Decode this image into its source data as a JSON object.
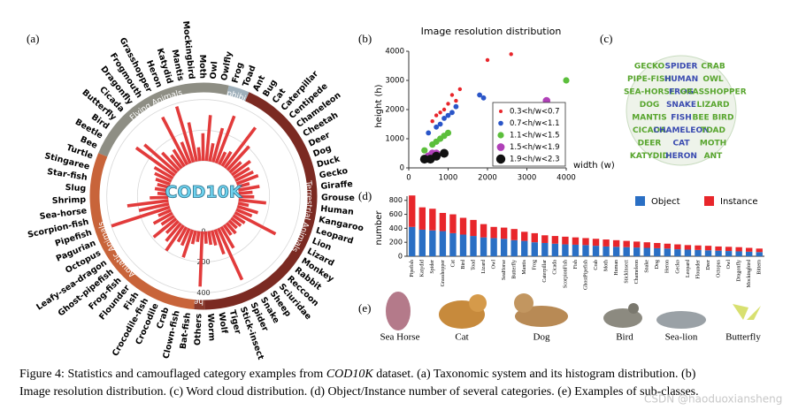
{
  "panel_labels": [
    "(a)",
    "(b)",
    "(c)",
    "(d)",
    "(e)"
  ],
  "chart_data": [
    {
      "type": "radial_bar",
      "center_label": "COD10K",
      "rlim": [
        0,
        450
      ],
      "rticks": [
        0,
        200,
        400
      ],
      "bar_color": "#e23b3b",
      "groups": [
        {
          "name": "Flying Animals",
          "color": "#8e8e84",
          "categories": [
            "Bee",
            "Beetle",
            "Bird",
            "Butterfly",
            "Cicada",
            "Dragonfly",
            "Frogmouth",
            "Grasshopper",
            "Heron",
            "Katydid",
            "Mantis",
            "Mockingbird",
            "Moth",
            "Owl",
            "Owlfly"
          ],
          "values": [
            120,
            140,
            310,
            280,
            160,
            110,
            130,
            350,
            150,
            380,
            260,
            90,
            180,
            300,
            120
          ]
        },
        {
          "name": "Amphibians",
          "color": "#9fb0bb",
          "categories": [
            "Frog",
            "Toad"
          ],
          "values": [
            230,
            330
          ]
        },
        {
          "name": "Terrestrial Animals",
          "color": "#7b2a22",
          "categories": [
            "Ant",
            "Bug",
            "Cat",
            "Caterpillar",
            "Centipede",
            "Chameleon",
            "Cheetah",
            "Deer",
            "Dog",
            "Duck",
            "Gecko",
            "Giraffe",
            "Grouse",
            "Human",
            "Kangaroo",
            "Leopard",
            "Lion",
            "Lizard",
            "Monkey",
            "Rabbit",
            "Reccoon",
            "Sciuridae",
            "Sheep",
            "Snake",
            "Spider",
            "Stick-insect",
            "Tiger",
            "Wolf",
            "Worm"
          ],
          "values": [
            90,
            110,
            330,
            210,
            100,
            150,
            120,
            130,
            150,
            80,
            140,
            90,
            100,
            180,
            70,
            140,
            110,
            300,
            90,
            80,
            70,
            90,
            80,
            160,
            370,
            170,
            100,
            90,
            80
          ]
        },
        {
          "name": "Others",
          "color": "#8a3a2c",
          "categories": [
            "Others"
          ],
          "values": [
            360
          ]
        },
        {
          "name": "Aquatic Animals",
          "color": "#c8643a",
          "categories": [
            "Bat-fish",
            "Clown-fish",
            "Crab",
            "Crocodile",
            "Crocodile-fish",
            "Fish",
            "Flounder",
            "Frog-fish",
            "Ghost-pipefish",
            "Leafy-sea-dragon",
            "Octopus",
            "Pagurian",
            "Pipefish",
            "Scorpion-fish",
            "Sea-horse",
            "Shrimp",
            "Slug",
            "Star-fish",
            "Stingaree",
            "Turtle"
          ],
          "values": [
            70,
            90,
            190,
            120,
            110,
            200,
            150,
            110,
            190,
            100,
            140,
            90,
            400,
            200,
            270,
            120,
            70,
            90,
            80,
            100
          ]
        }
      ]
    },
    {
      "type": "scatter",
      "title": "Image resolution distribution",
      "xlabel": "width (w)",
      "ylabel": "height (h)",
      "xlim": [
        0,
        4000
      ],
      "ylim": [
        0,
        4000
      ],
      "xticks": [
        0,
        1000,
        2000,
        3000,
        4000
      ],
      "yticks": [
        0,
        1000,
        2000,
        3000,
        4000
      ],
      "series": [
        {
          "name": "0.3<h/w<0.7",
          "color": "#e8262b",
          "x": [
            600,
            700,
            800,
            900,
            1000,
            1100,
            1200,
            1300,
            2000,
            2600
          ],
          "y": [
            1600,
            1800,
            1900,
            2000,
            2200,
            2500,
            2300,
            2700,
            3700,
            3900
          ]
        },
        {
          "name": "0.7<h/w<1.1",
          "color": "#2a55c8",
          "x": [
            500,
            700,
            800,
            900,
            1000,
            1100,
            1200,
            1800,
            1900
          ],
          "y": [
            1200,
            1400,
            1500,
            1700,
            1800,
            1900,
            2100,
            2500,
            2400
          ]
        },
        {
          "name": "1.1<h/w<1.5",
          "color": "#5cbf3c",
          "x": [
            400,
            600,
            700,
            800,
            900,
            1000,
            4000
          ],
          "y": [
            600,
            800,
            900,
            1000,
            1100,
            1200,
            3000
          ]
        },
        {
          "name": "1.5<h/w<1.9",
          "color": "#b040b8",
          "x": [
            400,
            500,
            600,
            700,
            3500
          ],
          "y": [
            300,
            400,
            500,
            500,
            2300
          ]
        },
        {
          "name": "1.9<h/w<2.3",
          "color": "#111111",
          "x": [
            400,
            550,
            700,
            900
          ],
          "y": [
            300,
            300,
            400,
            500
          ]
        }
      ]
    },
    {
      "type": "stacked_bar",
      "ylabel": "number",
      "ylim": [
        0,
        860
      ],
      "yticks": [
        0,
        200,
        400,
        600,
        800
      ],
      "categories": [
        "Pipefish",
        "Katydid",
        "Spider",
        "Grasshopper",
        "Cat",
        "Bird",
        "Toad",
        "Lizard",
        "Owl",
        "SeaHorse",
        "Butterfly",
        "Mantis",
        "Frog",
        "Caterpillar",
        "Cicada",
        "ScorpionFish",
        "Fish",
        "GhostPipefish",
        "Crab",
        "Moth",
        "Human",
        "StickInsect",
        "Chameleon",
        "Snake",
        "Dog",
        "Heron",
        "Gecko",
        "Leopard",
        "Flounder",
        "Deer",
        "Octopus",
        "Owl",
        "Dragonfly",
        "Mockingbird",
        "Bittern"
      ],
      "series": [
        {
          "name": "Object",
          "color": "#2a6fc4",
          "values": [
            420,
            380,
            370,
            360,
            330,
            310,
            290,
            270,
            260,
            250,
            230,
            220,
            200,
            190,
            180,
            170,
            165,
            160,
            150,
            140,
            135,
            130,
            125,
            120,
            115,
            110,
            100,
            95,
            90,
            85,
            80,
            75,
            70,
            65,
            60
          ]
        },
        {
          "name": "Instance",
          "color": "#e8262b",
          "values": [
            450,
            320,
            310,
            260,
            270,
            240,
            230,
            190,
            160,
            160,
            160,
            130,
            130,
            110,
            110,
            110,
            105,
            100,
            100,
            100,
            95,
            90,
            85,
            80,
            75,
            70,
            70,
            65,
            65,
            65,
            60,
            60,
            60,
            55,
            50
          ]
        }
      ]
    }
  ],
  "word_cloud": {
    "words": [
      "GECKO",
      "SPIDER",
      "CRAB",
      "PIPE-FISH",
      "HUMAN",
      "OWL",
      "SEA-HORSE",
      "FROG",
      "GRASSHOPPER",
      "DOG",
      "SNAKE",
      "LIZARD",
      "MANTIS",
      "FISH",
      "BEE BIRD",
      "CICADA",
      "CHAMELEON",
      "TOAD",
      "DEER",
      "CAT",
      "MOTH",
      "KATYDID",
      "HERON",
      "ANT"
    ]
  },
  "examples": [
    "Sea Horse",
    "Cat",
    "Dog",
    "Bird",
    "Sea-lion",
    "Butterfly"
  ],
  "caption": {
    "label": "Figure 4:",
    "part1": "Statistics and camouflaged category examples from",
    "dataset": "COD10K",
    "part2": "dataset. (a) Taxonomic system and its histogram distribution. (b)",
    "line2": "Image resolution distribution. (c) Word cloud distribution. (d) Object/Instance number of several categories. (e) Examples of sub-classes."
  },
  "watermark": "CSDN @haoduoxiansheng"
}
